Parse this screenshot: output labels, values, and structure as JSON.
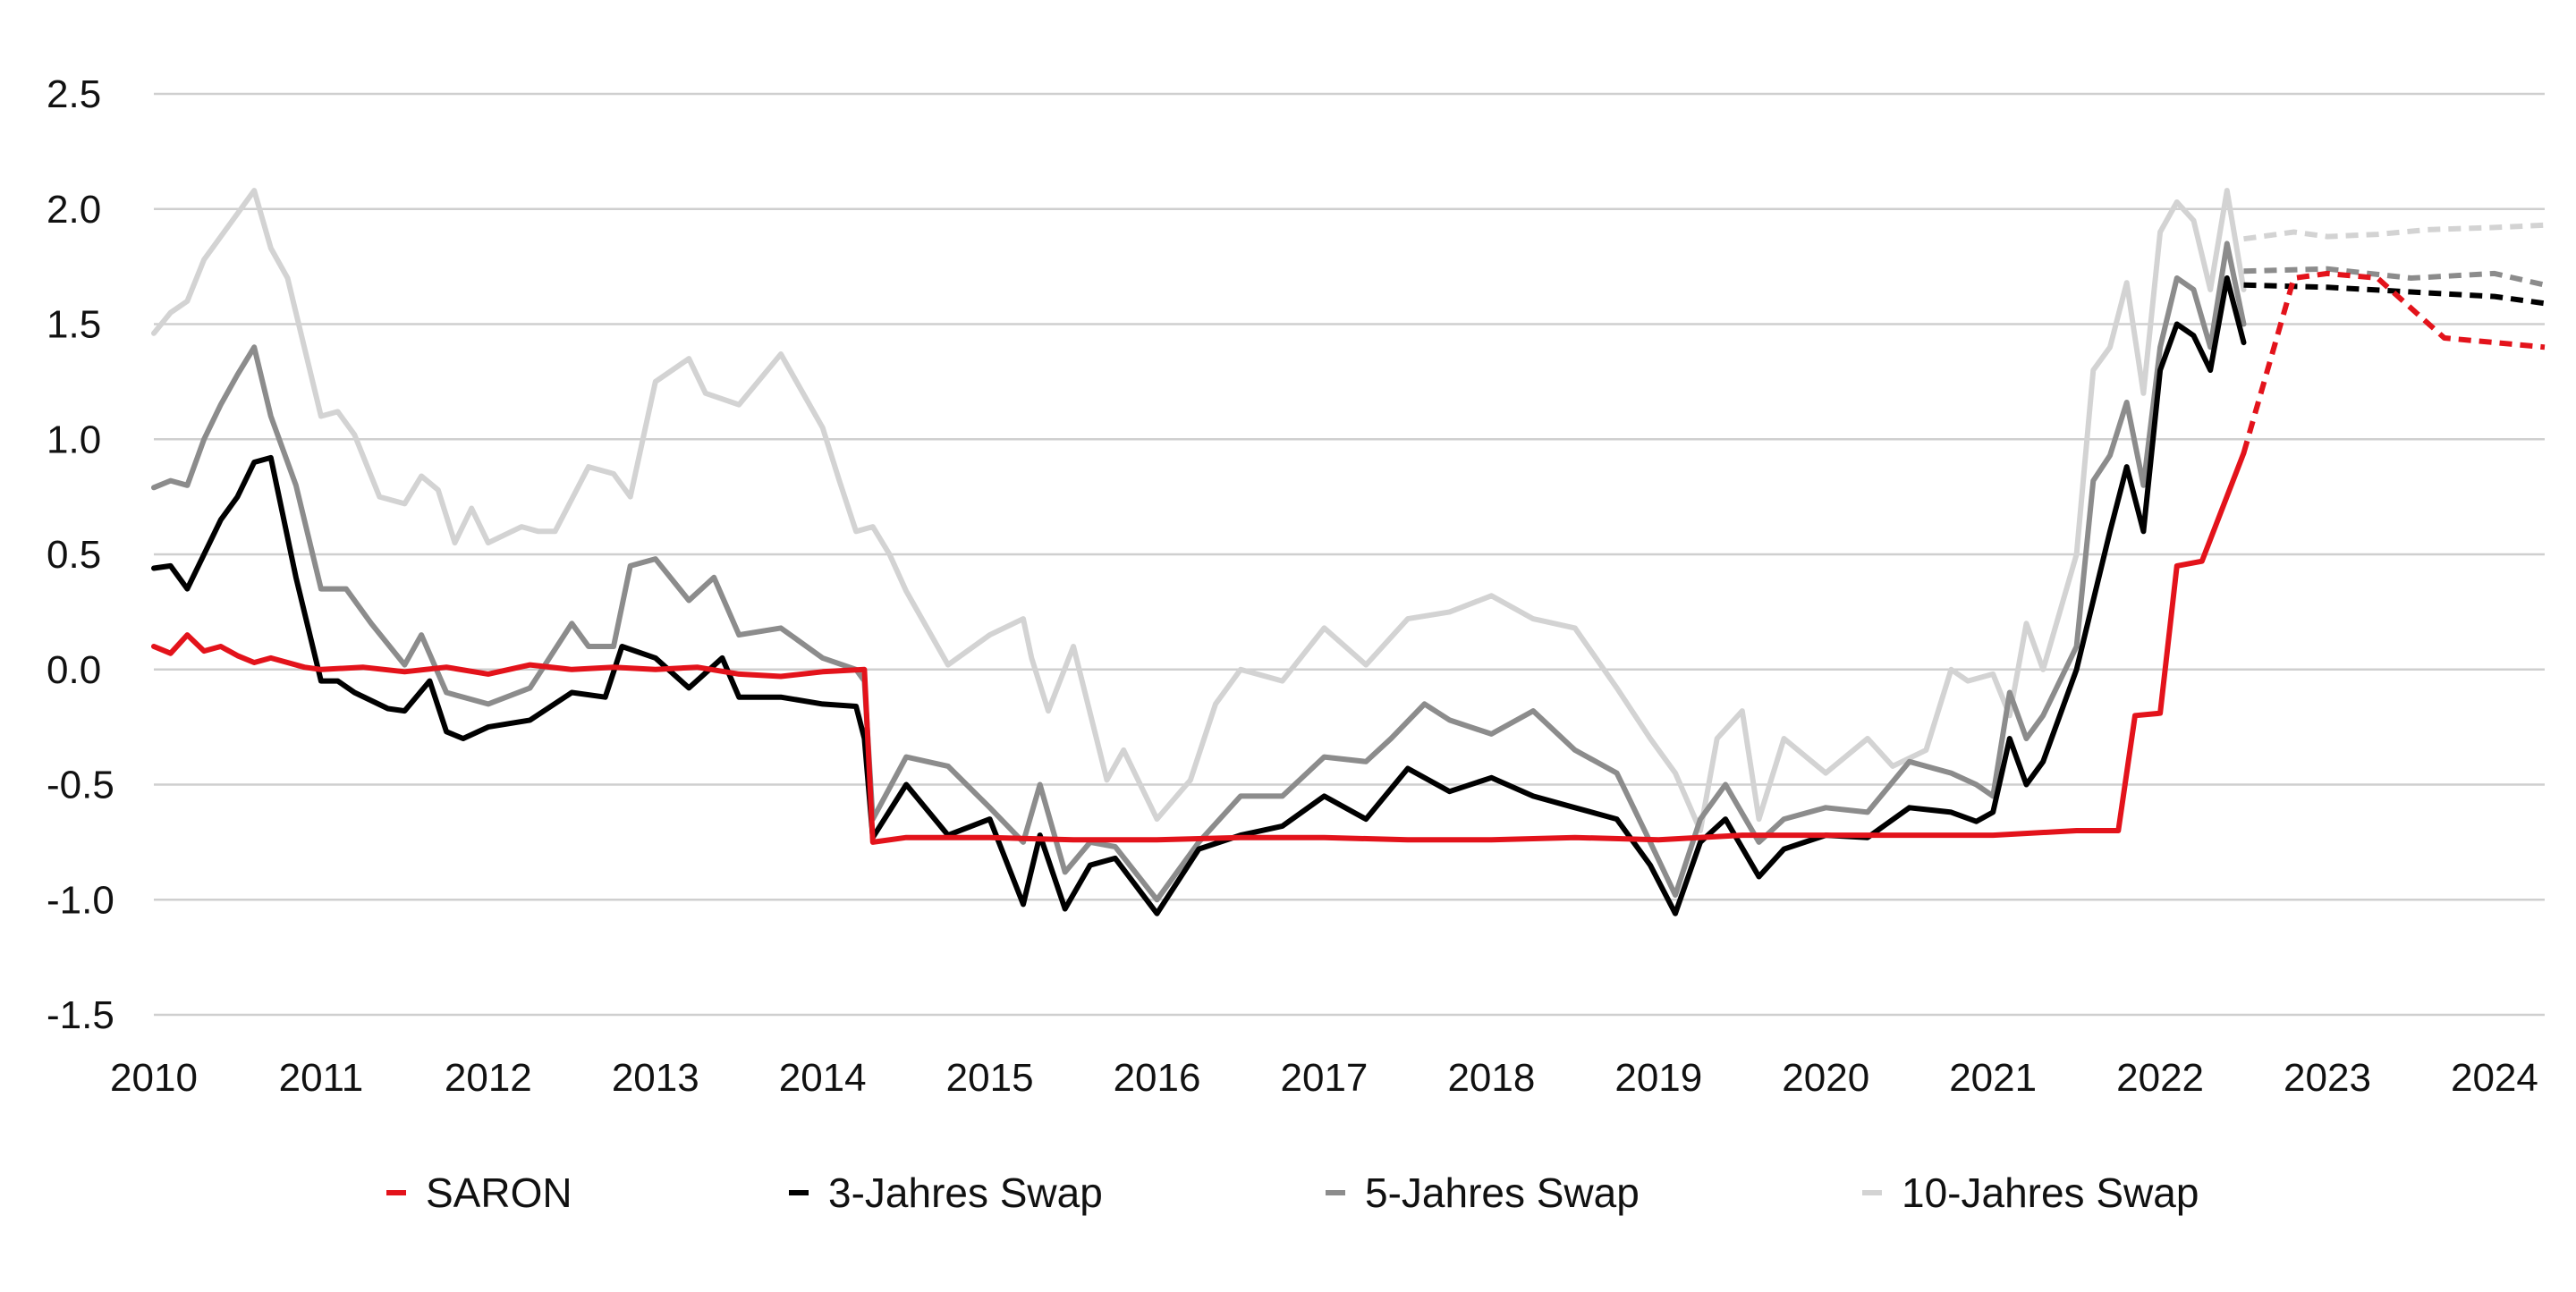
{
  "chart_data": {
    "type": "line",
    "title": "",
    "xlabel": "",
    "ylabel": "",
    "xlim": [
      2010,
      2024.3
    ],
    "ylim": [
      -1.5,
      2.5
    ],
    "y_ticks": [
      2.5,
      2.0,
      1.5,
      1.0,
      0.5,
      0.0,
      -0.5,
      -1.0,
      -1.5
    ],
    "y_tick_labels": [
      "2.5",
      "2.0",
      "1.5",
      "1.0",
      "0.5",
      "0.0",
      "-0.5",
      "-1.0",
      "-1.5"
    ],
    "x_tick_labels": [
      "2010",
      "2011",
      "2012",
      "2013",
      "2014",
      "2015",
      "2016",
      "2017",
      "2018",
      "2019",
      "2020",
      "2021",
      "2022",
      "2023",
      "2024"
    ],
    "grid": "horizontal",
    "legend_position": "bottom",
    "forecast_start": 2022.5,
    "series": [
      {
        "name": "SARON",
        "color": "#e3131b",
        "x": [
          2010,
          2010.1,
          2010.2,
          2010.3,
          2010.4,
          2010.5,
          2010.6,
          2010.7,
          2010.8,
          2010.9,
          2011,
          2011.25,
          2011.5,
          2011.75,
          2012,
          2012.25,
          2012.5,
          2012.75,
          2013,
          2013.25,
          2013.5,
          2013.75,
          2014,
          2014.25,
          2014.3,
          2014.5,
          2015,
          2015.5,
          2016,
          2016.5,
          2017,
          2017.5,
          2018,
          2018.5,
          2019,
          2019.5,
          2020,
          2020.5,
          2021,
          2021.5,
          2021.75,
          2021.85,
          2022,
          2022.1,
          2022.25,
          2022.5
        ],
        "y": [
          0.1,
          0.07,
          0.15,
          0.08,
          0.1,
          0.06,
          0.03,
          0.05,
          0.03,
          0.01,
          0.0,
          0.01,
          -0.01,
          0.01,
          -0.02,
          0.02,
          0.0,
          0.01,
          0.0,
          0.01,
          -0.02,
          -0.03,
          -0.01,
          0.0,
          -0.75,
          -0.73,
          -0.73,
          -0.74,
          -0.74,
          -0.73,
          -0.73,
          -0.74,
          -0.74,
          -0.73,
          -0.74,
          -0.72,
          -0.72,
          -0.72,
          -0.72,
          -0.7,
          -0.7,
          -0.2,
          -0.19,
          0.45,
          0.47,
          0.94
        ],
        "forecast_x": [
          2022.5,
          2022.8,
          2023,
          2023.3,
          2023.7,
          2024,
          2024.3
        ],
        "forecast_y": [
          0.94,
          1.7,
          1.72,
          1.7,
          1.44,
          1.42,
          1.4
        ]
      },
      {
        "name": "3-Jahres Swap",
        "color": "#000000",
        "x": [
          2010,
          2010.1,
          2010.2,
          2010.4,
          2010.5,
          2010.6,
          2010.7,
          2010.85,
          2011,
          2011.1,
          2011.2,
          2011.4,
          2011.5,
          2011.65,
          2011.75,
          2011.85,
          2012,
          2012.25,
          2012.5,
          2012.7,
          2012.8,
          2013,
          2013.2,
          2013.4,
          2013.5,
          2013.75,
          2014,
          2014.2,
          2014.25,
          2014.3,
          2014.5,
          2014.75,
          2015,
          2015.2,
          2015.3,
          2015.45,
          2015.6,
          2015.75,
          2016,
          2016.25,
          2016.5,
          2016.75,
          2017,
          2017.25,
          2017.5,
          2017.75,
          2018,
          2018.25,
          2018.5,
          2018.75,
          2018.95,
          2019.1,
          2019.25,
          2019.4,
          2019.6,
          2019.75,
          2020,
          2020.25,
          2020.5,
          2020.75,
          2020.9,
          2021,
          2021.1,
          2021.2,
          2021.3,
          2021.5,
          2021.6,
          2021.7,
          2021.8,
          2021.9,
          2022,
          2022.1,
          2022.2,
          2022.3,
          2022.4,
          2022.5
        ],
        "y": [
          0.44,
          0.45,
          0.35,
          0.65,
          0.75,
          0.9,
          0.92,
          0.4,
          -0.05,
          -0.05,
          -0.1,
          -0.17,
          -0.18,
          -0.05,
          -0.27,
          -0.3,
          -0.25,
          -0.22,
          -0.1,
          -0.12,
          0.1,
          0.05,
          -0.08,
          0.05,
          -0.12,
          -0.12,
          -0.15,
          -0.16,
          -0.3,
          -0.73,
          -0.5,
          -0.72,
          -0.65,
          -1.02,
          -0.72,
          -1.04,
          -0.85,
          -0.82,
          -1.06,
          -0.78,
          -0.72,
          -0.68,
          -0.55,
          -0.65,
          -0.43,
          -0.53,
          -0.47,
          -0.55,
          -0.6,
          -0.65,
          -0.85,
          -1.06,
          -0.75,
          -0.65,
          -0.9,
          -0.78,
          -0.72,
          -0.73,
          -0.6,
          -0.62,
          -0.66,
          -0.62,
          -0.3,
          -0.5,
          -0.4,
          0.0,
          0.3,
          0.6,
          0.88,
          0.6,
          1.3,
          1.5,
          1.45,
          1.3,
          1.7,
          1.42
        ],
        "forecast_x": [
          2022.5,
          2023,
          2023.5,
          2024,
          2024.3
        ],
        "forecast_y": [
          1.67,
          1.66,
          1.64,
          1.62,
          1.59
        ]
      },
      {
        "name": "5-Jahres Swap",
        "color": "#8c8c8c",
        "x": [
          2010,
          2010.1,
          2010.2,
          2010.3,
          2010.4,
          2010.5,
          2010.6,
          2010.7,
          2010.85,
          2011,
          2011.15,
          2011.3,
          2011.5,
          2011.6,
          2011.75,
          2012,
          2012.25,
          2012.5,
          2012.6,
          2012.75,
          2012.85,
          2013,
          2013.2,
          2013.35,
          2013.5,
          2013.75,
          2014,
          2014.2,
          2014.25,
          2014.3,
          2014.5,
          2014.75,
          2015,
          2015.2,
          2015.3,
          2015.45,
          2015.6,
          2015.75,
          2016,
          2016.25,
          2016.5,
          2016.75,
          2017,
          2017.25,
          2017.4,
          2017.6,
          2017.75,
          2018,
          2018.25,
          2018.5,
          2018.75,
          2018.95,
          2019.1,
          2019.25,
          2019.4,
          2019.6,
          2019.75,
          2020,
          2020.25,
          2020.5,
          2020.75,
          2020.9,
          2021,
          2021.1,
          2021.2,
          2021.3,
          2021.5,
          2021.6,
          2021.7,
          2021.8,
          2021.9,
          2022,
          2022.1,
          2022.2,
          2022.3,
          2022.4,
          2022.5
        ],
        "y": [
          0.79,
          0.82,
          0.8,
          1.0,
          1.15,
          1.28,
          1.4,
          1.1,
          0.8,
          0.35,
          0.35,
          0.2,
          0.02,
          0.15,
          -0.1,
          -0.15,
          -0.08,
          0.2,
          0.1,
          0.1,
          0.45,
          0.48,
          0.3,
          0.4,
          0.15,
          0.18,
          0.05,
          0.0,
          -0.05,
          -0.65,
          -0.38,
          -0.42,
          -0.6,
          -0.75,
          -0.5,
          -0.88,
          -0.75,
          -0.77,
          -1.0,
          -0.75,
          -0.55,
          -0.55,
          -0.38,
          -0.4,
          -0.3,
          -0.15,
          -0.22,
          -0.28,
          -0.18,
          -0.35,
          -0.45,
          -0.75,
          -0.98,
          -0.65,
          -0.5,
          -0.75,
          -0.65,
          -0.6,
          -0.62,
          -0.4,
          -0.45,
          -0.5,
          -0.55,
          -0.1,
          -0.3,
          -0.2,
          0.1,
          0.82,
          0.93,
          1.16,
          0.8,
          1.4,
          1.7,
          1.65,
          1.4,
          1.85,
          1.5
        ],
        "forecast_x": [
          2022.5,
          2023,
          2023.5,
          2024,
          2024.3
        ],
        "forecast_y": [
          1.73,
          1.74,
          1.7,
          1.72,
          1.67
        ]
      },
      {
        "name": "10-Jahres Swap",
        "color": "#d3d3d3",
        "x": [
          2010,
          2010.1,
          2010.2,
          2010.3,
          2010.4,
          2010.5,
          2010.6,
          2010.7,
          2010.8,
          2010.9,
          2011,
          2011.1,
          2011.2,
          2011.35,
          2011.5,
          2011.6,
          2011.7,
          2011.8,
          2011.9,
          2012,
          2012.2,
          2012.3,
          2012.4,
          2012.6,
          2012.75,
          2012.85,
          2013,
          2013.2,
          2013.3,
          2013.5,
          2013.75,
          2014,
          2014.1,
          2014.2,
          2014.3,
          2014.4,
          2014.5,
          2014.75,
          2015,
          2015.2,
          2015.25,
          2015.35,
          2015.5,
          2015.7,
          2015.8,
          2016,
          2016.2,
          2016.35,
          2016.5,
          2016.75,
          2017,
          2017.25,
          2017.5,
          2017.75,
          2018,
          2018.25,
          2018.5,
          2018.75,
          2018.95,
          2019.1,
          2019.25,
          2019.35,
          2019.5,
          2019.6,
          2019.75,
          2020,
          2020.25,
          2020.4,
          2020.6,
          2020.75,
          2020.85,
          2021,
          2021.1,
          2021.2,
          2021.3,
          2021.5,
          2021.6,
          2021.7,
          2021.8,
          2021.9,
          2022,
          2022.1,
          2022.2,
          2022.3,
          2022.4,
          2022.5
        ],
        "y": [
          1.46,
          1.55,
          1.6,
          1.78,
          1.88,
          1.98,
          2.08,
          1.83,
          1.7,
          1.4,
          1.1,
          1.12,
          1.02,
          0.75,
          0.72,
          0.84,
          0.78,
          0.55,
          0.7,
          0.55,
          0.62,
          0.6,
          0.6,
          0.88,
          0.85,
          0.75,
          1.25,
          1.35,
          1.2,
          1.15,
          1.37,
          1.05,
          0.82,
          0.6,
          0.62,
          0.5,
          0.34,
          0.02,
          0.15,
          0.22,
          0.05,
          -0.18,
          0.1,
          -0.48,
          -0.35,
          -0.65,
          -0.48,
          -0.15,
          0.0,
          -0.05,
          0.18,
          0.02,
          0.22,
          0.25,
          0.32,
          0.22,
          0.18,
          -0.08,
          -0.3,
          -0.45,
          -0.7,
          -0.3,
          -0.18,
          -0.65,
          -0.3,
          -0.45,
          -0.3,
          -0.42,
          -0.35,
          0.0,
          -0.05,
          -0.02,
          -0.2,
          0.2,
          0.0,
          0.5,
          1.3,
          1.4,
          1.68,
          1.2,
          1.9,
          2.03,
          1.95,
          1.65,
          2.08,
          1.65
        ],
        "forecast_x": [
          2022.5,
          2022.8,
          2023,
          2023.3,
          2023.6,
          2024,
          2024.3
        ],
        "forecast_y": [
          1.87,
          1.9,
          1.88,
          1.89,
          1.91,
          1.92,
          1.93
        ]
      }
    ]
  }
}
